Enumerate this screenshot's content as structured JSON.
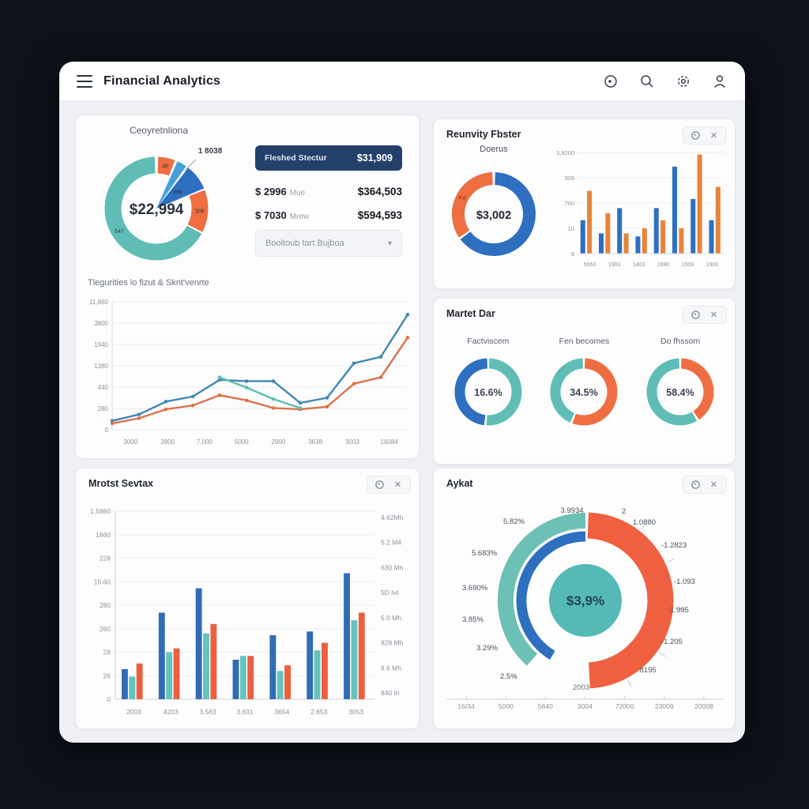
{
  "app": {
    "title": "Financial Analytics"
  },
  "icons": {
    "header": [
      "record-icon",
      "search-icon",
      "settings-icon",
      "user-icon"
    ],
    "card": [
      "menu-icon",
      "close-icon"
    ]
  },
  "colors": {
    "page_bg": "#0d1119",
    "body_bg": "#eef0f5",
    "card_bg": "#fdfdfe",
    "teal": "#5fbdb5",
    "orange": "#ee6e41",
    "blue": "#2e6fc0",
    "light_blue": "#45a0d8",
    "navy_banner": "#23406b",
    "line_blue": "#4187b3",
    "line_orange": "#dd7348",
    "bar_blue": "#2f6cb5",
    "bar_teal": "#66c3bc",
    "bar_orange": "#ec5f3f",
    "gauge_center": "#55b9b5"
  },
  "overview": {
    "donut": {
      "title": "Ceoyretnliona",
      "center": "$22,994",
      "callout": "1 8038"
    },
    "side": {
      "banner_label": "Fleshed Stectur",
      "banner_value": "$31,909",
      "rows": [
        {
          "amount": "$ 2996",
          "unit": "Mue",
          "value": "$364,503"
        },
        {
          "amount": "$ 7030",
          "unit": "Mrew",
          "value": "$594,593"
        }
      ],
      "dropdown": "Booltoub tart Bujboa",
      "chevron": "▾"
    },
    "subtitle": "Tlegurities lo fizut & Sknt'venrte"
  },
  "revenue_card": {
    "title": "Reunvity Fbster",
    "donut_label": "Doerus"
  },
  "market_card": {
    "title": "Martet Dar"
  },
  "monthly_card": {
    "title": "Mrotst Sevtax"
  },
  "gauge_card": {
    "title": "Aykat",
    "top_label": "3.9934",
    "right_labels": [
      "2",
      "1.0880",
      "-1.2823",
      "-1.093",
      "-1.995",
      "-1.205",
      ".8195"
    ],
    "left_labels": [
      "5.82%",
      "5.683%",
      "3.690%",
      "3.85%",
      "3.29%",
      "2.5%"
    ],
    "inner_label": "2003"
  },
  "chart_data": [
    {
      "id": "overview-donut",
      "type": "pie",
      "center_label": "$22,994",
      "callout": "1 8038",
      "segments": [
        {
          "label": "48",
          "color": "#ee6e41",
          "start": 2,
          "end": 21,
          "style": "ring"
        },
        {
          "label": "",
          "color": "#45a0d8",
          "start": 24,
          "end": 35,
          "style": "wedge"
        },
        {
          "label": "888",
          "color": "#2e6fc0",
          "start": 38,
          "end": 67,
          "style": "wedge"
        },
        {
          "label": "508",
          "color": "#ee6e41",
          "start": 69,
          "end": 117,
          "style": "ring"
        },
        {
          "label": "547",
          "color": "#5fbdb5",
          "start": 119,
          "end": 358,
          "style": "ring"
        }
      ]
    },
    {
      "id": "trend-line",
      "type": "line",
      "y_ticks": [
        "11,860",
        "3800",
        "1940",
        "1380",
        "440",
        "280",
        "0"
      ],
      "x_ticks": [
        "3000",
        "2800",
        "7,000",
        "5000",
        "2900",
        "3638",
        "3003",
        "16084"
      ],
      "grid": true,
      "series": [
        {
          "name": "primary",
          "color": "#4187b3",
          "values": [
            7,
            12,
            22,
            26,
            39,
            38,
            38,
            21,
            25,
            52,
            57,
            90
          ]
        },
        {
          "name": "secondary",
          "color": "#dd7348",
          "values": [
            5,
            9,
            16,
            19,
            27,
            23,
            17,
            16,
            18,
            36,
            41,
            72
          ]
        },
        {
          "name": "tertiary",
          "color": "#5fbdb5",
          "values": [
            null,
            null,
            null,
            null,
            41,
            33,
            24,
            17,
            null,
            null,
            null,
            null
          ]
        }
      ]
    },
    {
      "id": "revenue-donut",
      "type": "donut",
      "center_label": "$3,002",
      "segments": [
        {
          "label": "",
          "color": "#2e6fc0",
          "start": 2,
          "end": 233
        },
        {
          "label": "P.d",
          "color": "#ee6e41",
          "start": 236,
          "end": 358
        }
      ]
    },
    {
      "id": "revenue-bars",
      "type": "bar-pairs",
      "y_ticks": [
        "3,9200",
        "309",
        "700",
        "10",
        "8"
      ],
      "x_ticks": [
        "5663",
        "1903",
        "1403",
        "1690",
        "1509",
        "1900"
      ],
      "series": [
        {
          "name": "blue",
          "color": "#2e6fc0",
          "values": [
            33,
            20,
            45,
            17,
            45,
            86,
            54,
            33
          ]
        },
        {
          "name": "orange",
          "color": "#e8833a",
          "values": [
            62,
            40,
            20,
            25,
            33,
            25,
            98,
            66
          ]
        }
      ]
    },
    {
      "id": "market-donuts",
      "type": "donut-multi",
      "items": [
        {
          "label": "Factviscem",
          "value": "16.6%",
          "segments": [
            {
              "color": "#5fbdb5",
              "start": 2,
              "end": 183
            },
            {
              "color": "#2e6fc0",
              "start": 187,
              "end": 358
            }
          ]
        },
        {
          "label": "Fen becomes",
          "value": "34.5%",
          "segments": [
            {
              "color": "#ee6e41",
              "start": 2,
              "end": 200
            },
            {
              "color": "#5fbdb5",
              "start": 204,
              "end": 358
            }
          ]
        },
        {
          "label": "Do fhssom",
          "value": "58.4%",
          "segments": [
            {
              "color": "#ee6e41",
              "start": 2,
              "end": 146
            },
            {
              "color": "#5fbdb5",
              "start": 150,
              "end": 358
            }
          ]
        }
      ]
    },
    {
      "id": "monthly-bars",
      "type": "bar-grouped",
      "left_ticks": [
        "1,5860",
        "1860",
        "228",
        "15.60",
        "280",
        "260",
        "28",
        "26",
        "0"
      ],
      "right_ticks": [
        "4.62Mh",
        "5.2 M4",
        "630 Mh",
        "5D h4",
        "5.0 Mh",
        "828 Mh",
        "8.6 Mh",
        "840 th"
      ],
      "x_ticks": [
        "2003",
        "4203",
        "3.563",
        "3.631",
        "3654",
        "2.653",
        "3053"
      ],
      "series": [
        {
          "name": "blue",
          "color": "#2f6cb5",
          "values": [
            16,
            46,
            59,
            21,
            34,
            36,
            67
          ]
        },
        {
          "name": "teal",
          "color": "#66c3bc",
          "values": [
            12,
            25,
            35,
            23,
            15,
            26,
            42
          ]
        },
        {
          "name": "orange",
          "color": "#ec5f3f",
          "values": [
            19,
            27,
            40,
            23,
            18,
            30,
            46
          ]
        }
      ]
    },
    {
      "id": "gauge",
      "type": "gauge",
      "center_label": "$3,9%",
      "arcs": [
        {
          "color": "#6cc0b5",
          "r": 101,
          "width": 20,
          "start": 222,
          "end": 360
        },
        {
          "color": "#2e6fc0",
          "r": 81,
          "width": 13,
          "start": 211,
          "end": 360
        },
        {
          "color": "#ee6040",
          "r": 95,
          "width": 33,
          "start": 2,
          "end": 177
        }
      ],
      "tick_angles": [
        38,
        65,
        95,
        125,
        152
      ],
      "x_ticks": [
        "16/34",
        "5000",
        "5640",
        "3004",
        "72000",
        "23009",
        "20008"
      ]
    }
  ]
}
